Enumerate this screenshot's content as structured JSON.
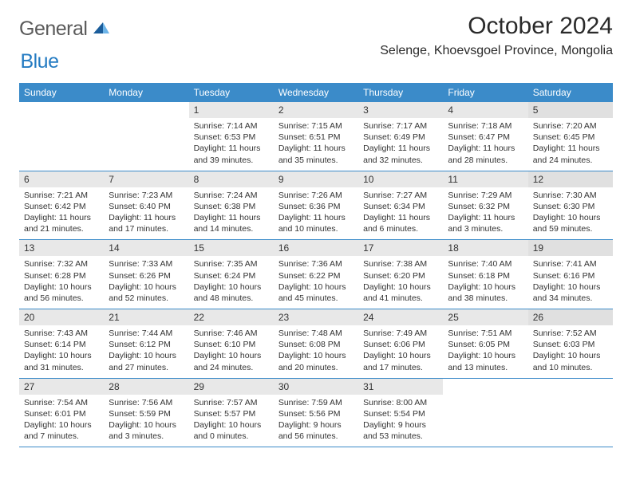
{
  "logo": {
    "general": "General",
    "blue": "Blue"
  },
  "title": "October 2024",
  "location": "Selenge, Khoevsgoel Province, Mongolia",
  "colors": {
    "header_bg": "#3b8bc9",
    "header_text": "#ffffff",
    "daynum_bg": "#e8e8e8",
    "cell_border": "#3b8bc9",
    "logo_gray": "#5a5a5a",
    "logo_blue": "#247bc2",
    "text": "#333333"
  },
  "day_names": [
    "Sunday",
    "Monday",
    "Tuesday",
    "Wednesday",
    "Thursday",
    "Friday",
    "Saturday"
  ],
  "weeks": [
    [
      null,
      null,
      {
        "n": "1",
        "sunrise": "7:14 AM",
        "sunset": "6:53 PM",
        "daylight": "11 hours and 39 minutes."
      },
      {
        "n": "2",
        "sunrise": "7:15 AM",
        "sunset": "6:51 PM",
        "daylight": "11 hours and 35 minutes."
      },
      {
        "n": "3",
        "sunrise": "7:17 AM",
        "sunset": "6:49 PM",
        "daylight": "11 hours and 32 minutes."
      },
      {
        "n": "4",
        "sunrise": "7:18 AM",
        "sunset": "6:47 PM",
        "daylight": "11 hours and 28 minutes."
      },
      {
        "n": "5",
        "sunrise": "7:20 AM",
        "sunset": "6:45 PM",
        "daylight": "11 hours and 24 minutes."
      }
    ],
    [
      {
        "n": "6",
        "sunrise": "7:21 AM",
        "sunset": "6:42 PM",
        "daylight": "11 hours and 21 minutes."
      },
      {
        "n": "7",
        "sunrise": "7:23 AM",
        "sunset": "6:40 PM",
        "daylight": "11 hours and 17 minutes."
      },
      {
        "n": "8",
        "sunrise": "7:24 AM",
        "sunset": "6:38 PM",
        "daylight": "11 hours and 14 minutes."
      },
      {
        "n": "9",
        "sunrise": "7:26 AM",
        "sunset": "6:36 PM",
        "daylight": "11 hours and 10 minutes."
      },
      {
        "n": "10",
        "sunrise": "7:27 AM",
        "sunset": "6:34 PM",
        "daylight": "11 hours and 6 minutes."
      },
      {
        "n": "11",
        "sunrise": "7:29 AM",
        "sunset": "6:32 PM",
        "daylight": "11 hours and 3 minutes."
      },
      {
        "n": "12",
        "sunrise": "7:30 AM",
        "sunset": "6:30 PM",
        "daylight": "10 hours and 59 minutes."
      }
    ],
    [
      {
        "n": "13",
        "sunrise": "7:32 AM",
        "sunset": "6:28 PM",
        "daylight": "10 hours and 56 minutes."
      },
      {
        "n": "14",
        "sunrise": "7:33 AM",
        "sunset": "6:26 PM",
        "daylight": "10 hours and 52 minutes."
      },
      {
        "n": "15",
        "sunrise": "7:35 AM",
        "sunset": "6:24 PM",
        "daylight": "10 hours and 48 minutes."
      },
      {
        "n": "16",
        "sunrise": "7:36 AM",
        "sunset": "6:22 PM",
        "daylight": "10 hours and 45 minutes."
      },
      {
        "n": "17",
        "sunrise": "7:38 AM",
        "sunset": "6:20 PM",
        "daylight": "10 hours and 41 minutes."
      },
      {
        "n": "18",
        "sunrise": "7:40 AM",
        "sunset": "6:18 PM",
        "daylight": "10 hours and 38 minutes."
      },
      {
        "n": "19",
        "sunrise": "7:41 AM",
        "sunset": "6:16 PM",
        "daylight": "10 hours and 34 minutes."
      }
    ],
    [
      {
        "n": "20",
        "sunrise": "7:43 AM",
        "sunset": "6:14 PM",
        "daylight": "10 hours and 31 minutes."
      },
      {
        "n": "21",
        "sunrise": "7:44 AM",
        "sunset": "6:12 PM",
        "daylight": "10 hours and 27 minutes."
      },
      {
        "n": "22",
        "sunrise": "7:46 AM",
        "sunset": "6:10 PM",
        "daylight": "10 hours and 24 minutes."
      },
      {
        "n": "23",
        "sunrise": "7:48 AM",
        "sunset": "6:08 PM",
        "daylight": "10 hours and 20 minutes."
      },
      {
        "n": "24",
        "sunrise": "7:49 AM",
        "sunset": "6:06 PM",
        "daylight": "10 hours and 17 minutes."
      },
      {
        "n": "25",
        "sunrise": "7:51 AM",
        "sunset": "6:05 PM",
        "daylight": "10 hours and 13 minutes."
      },
      {
        "n": "26",
        "sunrise": "7:52 AM",
        "sunset": "6:03 PM",
        "daylight": "10 hours and 10 minutes."
      }
    ],
    [
      {
        "n": "27",
        "sunrise": "7:54 AM",
        "sunset": "6:01 PM",
        "daylight": "10 hours and 7 minutes."
      },
      {
        "n": "28",
        "sunrise": "7:56 AM",
        "sunset": "5:59 PM",
        "daylight": "10 hours and 3 minutes."
      },
      {
        "n": "29",
        "sunrise": "7:57 AM",
        "sunset": "5:57 PM",
        "daylight": "10 hours and 0 minutes."
      },
      {
        "n": "30",
        "sunrise": "7:59 AM",
        "sunset": "5:56 PM",
        "daylight": "9 hours and 56 minutes."
      },
      {
        "n": "31",
        "sunrise": "8:00 AM",
        "sunset": "5:54 PM",
        "daylight": "9 hours and 53 minutes."
      },
      null,
      null
    ]
  ],
  "labels": {
    "sunrise": "Sunrise:",
    "sunset": "Sunset:",
    "daylight": "Daylight:"
  }
}
